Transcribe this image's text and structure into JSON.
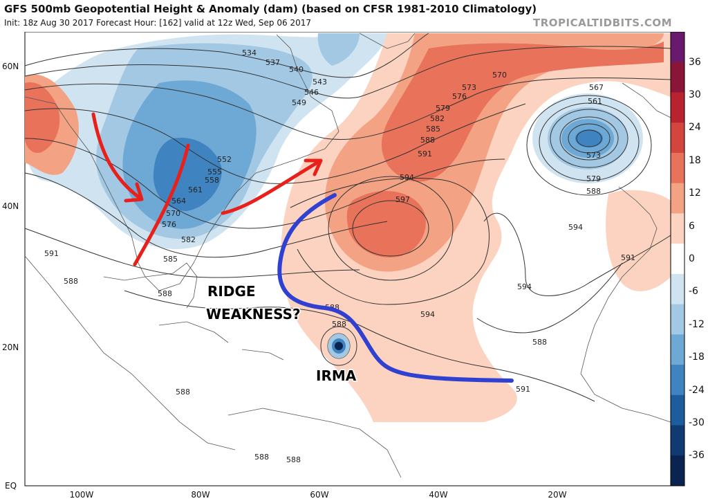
{
  "header": {
    "title": "GFS 500mb Geopotential Height & Anomaly (dam) (based on CFSR 1981-2010 Climatology)",
    "subtitle": "Init: 18z Aug 30 2017   Forecast Hour: [162]   valid at 12z Wed, Sep 06 2017",
    "brand": "TROPICALTIDBITS.COM"
  },
  "axes": {
    "lat_labels": [
      "60N",
      "40N",
      "20N",
      "EQ"
    ],
    "lon_labels": [
      "100W",
      "80W",
      "60W",
      "40W",
      "20W"
    ]
  },
  "colorbar": {
    "labels": [
      "36",
      "30",
      "24",
      "18",
      "12",
      "6",
      "0",
      "-6",
      "-12",
      "-18",
      "-24",
      "-30",
      "-36"
    ],
    "colors": [
      "#6a1a6e",
      "#8a1538",
      "#b8232f",
      "#d2463e",
      "#e8725a",
      "#f3a384",
      "#fbd3c0",
      "#ffffff",
      "#cfe3f0",
      "#a2c8e3",
      "#6ea8d4",
      "#3f84c0",
      "#1d5d9e",
      "#0f3a72",
      "#0a2350"
    ]
  },
  "contours": {
    "height_labels": [
      "534",
      "537",
      "540",
      "543",
      "546",
      "549",
      "552",
      "555",
      "558",
      "561",
      "564",
      "570",
      "576",
      "582",
      "585",
      "591",
      "588",
      "573",
      "576",
      "579",
      "582",
      "585",
      "588",
      "591",
      "594",
      "597",
      "570",
      "567",
      "561",
      "573",
      "579",
      "588",
      "594",
      "591",
      "594",
      "594",
      "588",
      "588",
      "588",
      "588",
      "591",
      "588",
      "588"
    ]
  },
  "annotations": {
    "ridge_label_1": "RIDGE",
    "ridge_label_2": "WEAKNESS?",
    "storm_label": "IRMA",
    "storm_contour": "588"
  }
}
